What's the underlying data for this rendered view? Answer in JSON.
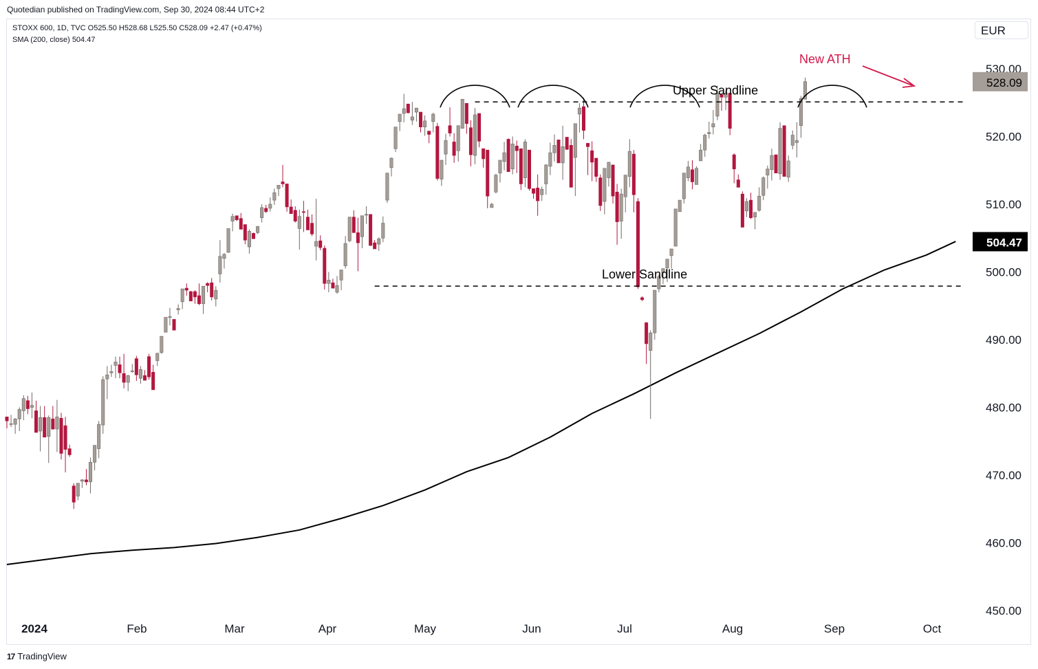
{
  "publisher_line": "Quotedian published on TradingView.com, Sep 30, 2024 08:44 UTC+2",
  "legend": {
    "line1": "STOXX 600, 1D, TVC  O525.50  H528.68  L525.50  C528.09  +2.47 (+0.47%)",
    "line2": "SMA (200, close)  504.47"
  },
  "currency": "EUR",
  "footer": {
    "brand": "TradingView",
    "logo_icon": "tradingview-logo-icon"
  },
  "colors": {
    "up": "#a59d97",
    "down": "#b2173f",
    "sma": "#000000",
    "annotation": "#d2194b"
  },
  "chart_data": {
    "type": "candlestick",
    "title": "STOXX 600, 1D, TVC",
    "ylim": [
      450,
      535
    ],
    "y_ticks": [
      "530.00",
      "520.00",
      "510.00",
      "500.00",
      "490.00",
      "480.00",
      "470.00",
      "460.00",
      "450.00"
    ],
    "x_tick_labels": [
      "2024",
      "Feb",
      "Mar",
      "Apr",
      "May",
      "Jun",
      "Jul",
      "Aug",
      "Sep",
      "Oct"
    ],
    "last_price_label": "528.09",
    "sma_label": "504.47",
    "candles_ohlc": [
      [
        478.6,
        478.6,
        476.9,
        478.0
      ],
      [
        477.5,
        478.9,
        477.1,
        477.6
      ],
      [
        477.5,
        478.4,
        476.1,
        478.3
      ],
      [
        478.3,
        480.0,
        476.5,
        479.7
      ],
      [
        479.5,
        481.8,
        478.1,
        481.3
      ],
      [
        481.0,
        481.7,
        479.0,
        479.8
      ],
      [
        480.0,
        482.2,
        478.4,
        480.3
      ],
      [
        479.5,
        481.0,
        476.8,
        476.3
      ],
      [
        476.5,
        480.2,
        473.5,
        478.5
      ],
      [
        478.5,
        480.2,
        476.2,
        475.6
      ],
      [
        475.7,
        478.8,
        471.8,
        478.5
      ],
      [
        478.3,
        480.2,
        476.7,
        476.8
      ],
      [
        476.8,
        481.1,
        473.4,
        478.6
      ],
      [
        478.4,
        479.2,
        472.3,
        473.2
      ],
      [
        477.3,
        478.6,
        470.4,
        473.8
      ],
      [
        473.9,
        474.5,
        472.7,
        473.0
      ],
      [
        468.4,
        468.8,
        465.0,
        466.0
      ],
      [
        466.9,
        467.7,
        466.3,
        468.8
      ],
      [
        469.1,
        469.4,
        468.1,
        469.3
      ],
      [
        469.3,
        470.9,
        468.5,
        469.0
      ],
      [
        469.0,
        472.6,
        467.3,
        471.9
      ],
      [
        471.9,
        474.2,
        470.7,
        474.4
      ],
      [
        473.9,
        478.0,
        472.5,
        477.5
      ],
      [
        477.4,
        484.6,
        476.1,
        484.1
      ],
      [
        484.2,
        486.1,
        481.2,
        484.8
      ],
      [
        485.1,
        486.3,
        484.5,
        485.3
      ],
      [
        486.2,
        487.5,
        484.3,
        486.7
      ],
      [
        486.3,
        487.5,
        484.3,
        485.1
      ],
      [
        485.0,
        487.9,
        482.8,
        483.7
      ],
      [
        483.7,
        484.8,
        482.4,
        484.7
      ],
      [
        485.3,
        486.4,
        485.1,
        485.4
      ],
      [
        487.2,
        487.6,
        483.9,
        484.8
      ],
      [
        484.3,
        486.1,
        483.5,
        485.6
      ],
      [
        484.7,
        485.5,
        484.1,
        484.0
      ],
      [
        487.5,
        487.9,
        484.1,
        484.5
      ],
      [
        485.2,
        486.3,
        483.5,
        482.6
      ],
      [
        486.9,
        487.2,
        486.1,
        488.0
      ],
      [
        488.1,
        490.3,
        487.9,
        490.5
      ],
      [
        491.1,
        492.0,
        491.2,
        493.3
      ],
      [
        493.3,
        494.7,
        492.1,
        493.4
      ],
      [
        493.0,
        493.0,
        491.9,
        491.4
      ],
      [
        494.4,
        495.2,
        493.7,
        494.6
      ],
      [
        495.6,
        497.2,
        494.5,
        497.5
      ],
      [
        497.6,
        498.3,
        496.5,
        497.3
      ],
      [
        497.1,
        497.2,
        496.0,
        495.7
      ],
      [
        497.1,
        497.3,
        495.3,
        496.3
      ],
      [
        496.5,
        498.3,
        495.1,
        495.3
      ],
      [
        495.3,
        497.6,
        493.8,
        497.9
      ],
      [
        498.3,
        498.5,
        497.0,
        498.0
      ],
      [
        498.4,
        499.1,
        495.8,
        496.3
      ],
      [
        496.0,
        497.9,
        494.9,
        497.3
      ],
      [
        499.7,
        504.7,
        498.4,
        502.3
      ],
      [
        502.0,
        502.8,
        500.5,
        502.6
      ],
      [
        502.9,
        506.3,
        502.8,
        506.4
      ],
      [
        507.5,
        508.6,
        506.0,
        508.2
      ],
      [
        508.3,
        507.6,
        507.5,
        507.7
      ],
      [
        507.9,
        508.7,
        506.4,
        506.3
      ],
      [
        507.0,
        506.6,
        504.1,
        504.7
      ],
      [
        503.7,
        506.3,
        502.7,
        506.0
      ],
      [
        505.7,
        505.8,
        504.9,
        504.9
      ],
      [
        505.8,
        506.8,
        505.6,
        506.7
      ],
      [
        508.0,
        510.0,
        507.3,
        509.5
      ],
      [
        509.4,
        509.9,
        508.7,
        508.9
      ],
      [
        509.4,
        511.0,
        508.9,
        510.0
      ],
      [
        510.6,
        512.3,
        509.9,
        511.7
      ],
      [
        512.3,
        512.6,
        511.2,
        512.8
      ],
      [
        513.3,
        515.8,
        512.5,
        513.0
      ],
      [
        513.0,
        509.1,
        508.9,
        509.6
      ],
      [
        509.6,
        510.7,
        508.6,
        508.6
      ],
      [
        509.1,
        509.7,
        507.3,
        507.5
      ],
      [
        506.4,
        509.2,
        503.3,
        508.2
      ],
      [
        508.9,
        510.5,
        505.9,
        508.8
      ],
      [
        508.1,
        509.2,
        506.8,
        506.2
      ],
      [
        507.2,
        508.5,
        505.3,
        505.6
      ],
      [
        503.8,
        510.8,
        501.7,
        504.5
      ],
      [
        504.6,
        505.4,
        503.2,
        503.6
      ],
      [
        503.5,
        503.9,
        497.4,
        498.3
      ],
      [
        498.3,
        500.0,
        497.0,
        498.8
      ],
      [
        498.4,
        499.0,
        498.3,
        497.6
      ],
      [
        497.0,
        499.4,
        496.8,
        498.0
      ],
      [
        498.8,
        500.2,
        497.3,
        500.3
      ],
      [
        500.9,
        505.3,
        500.5,
        504.2
      ],
      [
        504.6,
        508.0,
        504.4,
        508.1
      ],
      [
        508.1,
        509.1,
        505.8,
        505.8
      ],
      [
        505.8,
        508.0,
        500.1,
        504.3
      ],
      [
        505.2,
        507.9,
        503.5,
        508.3
      ],
      [
        508.5,
        509.7,
        507.1,
        508.5
      ],
      [
        508.5,
        504.9,
        504.0,
        503.9
      ],
      [
        504.3,
        504.7,
        503.8,
        503.4
      ],
      [
        504.1,
        505.1,
        503.1,
        504.9
      ],
      [
        505.0,
        508.2,
        504.4,
        507.2
      ],
      [
        510.6,
        514.3,
        510.2,
        514.6
      ],
      [
        515.4,
        516.9,
        514.1,
        516.8
      ],
      [
        518.2,
        520.9,
        517.7,
        521.4
      ],
      [
        522.2,
        521.4,
        520.8,
        523.3
      ],
      [
        523.4,
        526.3,
        522.1,
        524.1
      ],
      [
        524.8,
        524.7,
        523.4,
        523.5
      ],
      [
        522.4,
        525.1,
        521.7,
        522.9
      ],
      [
        523.6,
        523.8,
        522.2,
        524.2
      ],
      [
        523.6,
        522.6,
        520.6,
        521.4
      ],
      [
        521.4,
        523.1,
        520.1,
        522.3
      ],
      [
        520.8,
        519.9,
        519.0,
        520.3
      ],
      [
        522.2,
        523.5,
        520.6,
        523.3
      ],
      [
        521.5,
        522.0,
        513.5,
        513.8
      ],
      [
        513.7,
        516.5,
        512.7,
        516.5
      ],
      [
        517.4,
        520.4,
        515.8,
        519.4
      ],
      [
        521.6,
        524.3,
        520.0,
        520.5
      ],
      [
        519.2,
        520.5,
        516.1,
        517.2
      ],
      [
        517.9,
        521.3,
        516.3,
        521.6
      ],
      [
        521.2,
        524.8,
        521.6,
        525.5
      ],
      [
        524.9,
        524.4,
        520.4,
        521.9
      ],
      [
        521.3,
        522.4,
        515.6,
        517.3
      ],
      [
        517.2,
        524.2,
        515.9,
        523.2
      ],
      [
        523.4,
        520.8,
        518.4,
        519.3
      ],
      [
        518.2,
        516.2,
        515.4,
        516.7
      ],
      [
        518.0,
        515.0,
        509.4,
        511.2
      ],
      [
        509.5,
        510.2,
        510.3,
        510.0
      ],
      [
        511.8,
        514.5,
        511.6,
        514.3
      ],
      [
        514.6,
        514.8,
        513.2,
        516.5
      ],
      [
        516.3,
        519.2,
        515.0,
        517.6
      ],
      [
        519.6,
        519.7,
        518.4,
        514.8
      ],
      [
        515.2,
        520.0,
        514.4,
        518.9
      ],
      [
        518.6,
        519.4,
        514.6,
        517.9
      ],
      [
        518.2,
        517.1,
        512.1,
        513.0
      ],
      [
        513.9,
        519.6,
        512.5,
        519.2
      ],
      [
        518.0,
        517.1,
        512.0,
        512.3
      ],
      [
        512.3,
        511.7,
        510.8,
        511.6
      ],
      [
        512.4,
        514.4,
        508.3,
        510.5
      ],
      [
        511.4,
        512.6,
        510.5,
        512.2
      ],
      [
        513.0,
        515.9,
        511.4,
        515.8
      ],
      [
        515.6,
        519.1,
        514.3,
        517.6
      ],
      [
        517.6,
        520.3,
        516.3,
        518.7
      ],
      [
        519.5,
        518.3,
        516.1,
        516.1
      ],
      [
        516.1,
        521.6,
        513.6,
        518.5
      ],
      [
        519.9,
        519.0,
        518.0,
        518.1
      ],
      [
        518.7,
        519.6,
        514.2,
        512.5
      ],
      [
        516.9,
        520.8,
        511.2,
        521.9
      ],
      [
        523.3,
        524.9,
        520.6,
        524.2
      ],
      [
        524.4,
        525.7,
        519.6,
        520.9
      ],
      [
        519.0,
        518.3,
        514.3,
        518.5
      ],
      [
        517.9,
        519.3,
        513.4,
        516.2
      ],
      [
        516.8,
        516.7,
        513.3,
        514.1
      ],
      [
        513.9,
        514.4,
        509.0,
        509.8
      ],
      [
        510.4,
        514.3,
        508.5,
        515.3
      ],
      [
        513.9,
        516.2,
        512.6,
        516.2
      ],
      [
        515.8,
        515.7,
        510.1,
        511.2
      ],
      [
        511.8,
        513.0,
        504.0,
        507.4
      ],
      [
        507.5,
        512.3,
        504.9,
        511.5
      ],
      [
        511.1,
        514.3,
        508.8,
        514.3
      ],
      [
        514.1,
        519.6,
        512.5,
        517.8
      ],
      [
        517.4,
        518.0,
        508.8,
        511.4
      ],
      [
        510.4,
        510.9,
        497.5,
        497.8
      ],
      [
        496.2,
        496.4,
        495.7,
        495.9
      ],
      [
        492.5,
        492.6,
        486.4,
        489.4
      ],
      [
        488.4,
        491.4,
        478.3,
        491.0
      ],
      [
        491.0,
        496.1,
        490.0,
        497.3
      ],
      [
        497.5,
        499.6,
        497.0,
        499.3
      ],
      [
        499.9,
        499.6,
        498.2,
        500.5
      ],
      [
        500.6,
        501.0,
        498.5,
        501.9
      ],
      [
        502.4,
        503.2,
        500.5,
        503.4
      ],
      [
        503.8,
        508.9,
        504.6,
        509.3
      ],
      [
        508.9,
        510.1,
        509.4,
        510.6
      ],
      [
        510.8,
        514.6,
        510.1,
        514.6
      ],
      [
        513.9,
        516.4,
        513.4,
        515.5
      ],
      [
        515.1,
        516.5,
        512.2,
        513.3
      ],
      [
        512.9,
        515.6,
        513.1,
        515.3
      ],
      [
        516.4,
        518.9,
        517.0,
        518.0
      ],
      [
        518.0,
        520.4,
        517.0,
        520.2
      ],
      [
        520.4,
        522.2,
        519.7,
        520.6
      ],
      [
        521.4,
        523.9,
        520.3,
        521.9
      ],
      [
        523.0,
        527.5,
        522.4,
        526.4
      ],
      [
        526.2,
        526.3,
        523.8,
        525.8
      ],
      [
        525.8,
        526.8,
        523.9,
        526.4
      ],
      [
        526.4,
        525.2,
        520.2,
        521.2
      ],
      [
        517.3,
        517.5,
        513.1,
        515.2
      ],
      [
        513.6,
        514.4,
        512.6,
        512.5
      ],
      [
        511.5,
        511.9,
        506.8,
        506.6
      ],
      [
        509.0,
        510.9,
        508.1,
        510.4
      ],
      [
        510.6,
        511.7,
        507.8,
        508.0
      ],
      [
        508.1,
        508.7,
        506.3,
        508.8
      ],
      [
        509.1,
        512.5,
        508.9,
        511.2
      ],
      [
        511.3,
        514.1,
        510.6,
        513.9
      ],
      [
        514.3,
        515.7,
        512.3,
        515.2
      ],
      [
        515.1,
        518.2,
        513.5,
        517.2
      ],
      [
        517.3,
        516.3,
        514.6,
        514.6
      ],
      [
        514.5,
        522.1,
        513.6,
        521.2
      ],
      [
        521.6,
        519.6,
        514.5,
        514.1
      ],
      [
        514.0,
        517.2,
        513.3,
        516.4
      ],
      [
        518.7,
        520.9,
        518.1,
        520.2
      ],
      [
        519.1,
        522.1,
        516.9,
        519.4
      ],
      [
        521.6,
        526.0,
        519.8,
        525.6
      ],
      [
        525.5,
        528.7,
        525.5,
        528.1
      ]
    ],
    "sma_200": [
      [
        0,
        456.8
      ],
      [
        10,
        457.6
      ],
      [
        20,
        458.4
      ],
      [
        30,
        458.9
      ],
      [
        40,
        459.3
      ],
      [
        50,
        459.9
      ],
      [
        60,
        460.8
      ],
      [
        70,
        461.9
      ],
      [
        80,
        463.6
      ],
      [
        90,
        465.5
      ],
      [
        100,
        467.8
      ],
      [
        110,
        470.5
      ],
      [
        120,
        472.6
      ],
      [
        130,
        475.6
      ],
      [
        140,
        479.1
      ],
      [
        150,
        482.0
      ],
      [
        160,
        485.1
      ],
      [
        170,
        488.0
      ],
      [
        180,
        490.9
      ],
      [
        190,
        494.1
      ],
      [
        200,
        497.5
      ],
      [
        210,
        500.3
      ],
      [
        220,
        502.5
      ],
      [
        227,
        504.5
      ]
    ],
    "annotations": {
      "upper_sandline": {
        "label": "Upper Sandline",
        "price": 525.1
      },
      "lower_sandline": {
        "label": "Lower Sandline",
        "price": 497.9
      },
      "new_ath": "New ATH"
    }
  }
}
